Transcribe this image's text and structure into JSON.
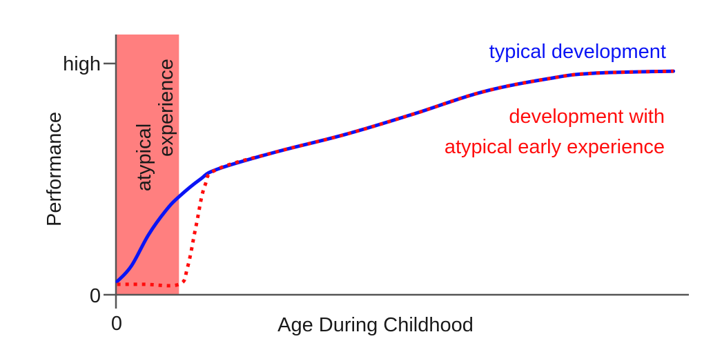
{
  "chart_data": {
    "type": "line",
    "title": "",
    "xlabel": "Age During Childhood",
    "ylabel": "Performance",
    "x_ticks": [
      {
        "value": 0,
        "label": "0"
      }
    ],
    "y_ticks": [
      {
        "value": 0,
        "label": "0"
      },
      {
        "value": 100,
        "label": "high"
      }
    ],
    "xlim": [
      0,
      100
    ],
    "ylim": [
      0,
      112
    ],
    "grid": false,
    "legend_position": "inline-right",
    "shaded_region": {
      "label_line1": "atypical",
      "label_line2": "experience",
      "x_start": 0,
      "x_end": 11,
      "color": "#ff7f7f"
    },
    "series": [
      {
        "name": "typical development",
        "color": "#0a14f5",
        "style": "solid",
        "x": [
          0.2,
          2.7,
          5.7,
          8.7,
          11.0,
          14.7,
          17.7,
          28.0,
          40.0,
          52.0,
          64.1,
          76.1,
          83.4,
          97.3
        ],
        "values": [
          5.7,
          12.5,
          26.0,
          36.4,
          42.4,
          49.9,
          54.3,
          61.8,
          69.3,
          78.2,
          87.8,
          93.7,
          95.8,
          96.7
        ]
      },
      {
        "name": "development with atypical early experience",
        "color": "#ff0d0d",
        "style": "dotted",
        "x": [
          0.2,
          5.0,
          11.0,
          12.5,
          14.0,
          15.5,
          17.7,
          28.0,
          40.0,
          52.0,
          64.1,
          76.1,
          83.4,
          97.3
        ],
        "values": [
          4.5,
          4.5,
          4.5,
          12.0,
          30.0,
          47.0,
          54.3,
          61.8,
          69.3,
          78.2,
          87.8,
          93.7,
          95.8,
          96.7
        ]
      }
    ],
    "annotations": [
      {
        "text": "typical development",
        "color": "#0a14f5"
      },
      {
        "text": "development with",
        "color": "#ff0d0d"
      },
      {
        "text": "atypical early experience",
        "color": "#ff0d0d"
      }
    ]
  },
  "labels": {
    "y_axis": "Performance",
    "x_axis": "Age During Childhood",
    "y_tick_high": "high",
    "y_tick_zero": "0",
    "x_tick_zero": "0",
    "shade_line1": "atypical",
    "shade_line2": "experience",
    "legend_typical": "typical development",
    "legend_atypical_line1": "development with",
    "legend_atypical_line2": "atypical early experience"
  }
}
